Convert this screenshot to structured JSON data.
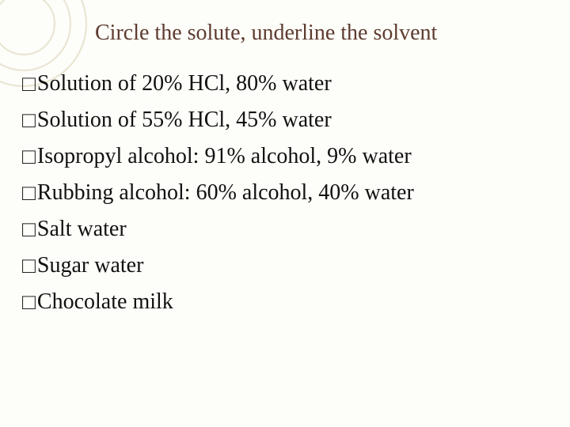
{
  "title": "Circle the solute, underline the solvent",
  "items": [
    "Solution of 20% HCl, 80% water",
    "Solution of 55% HCl, 45% water",
    "Isopropyl alcohol:  91% alcohol, 9% water",
    "Rubbing alcohol:  60% alcohol, 40% water",
    "Salt water",
    "Sugar water",
    "Chocolate milk"
  ],
  "colors": {
    "background": "#fdfdf9",
    "title_color": "#5e3b2f",
    "body_color": "#111111",
    "ring_color": "#e8e4d0"
  },
  "typography": {
    "title_fontsize_pt": 21,
    "body_fontsize_pt": 21,
    "title_font": "Georgia/serif",
    "body_font": "Times New Roman"
  },
  "bullet_glyph": "□"
}
